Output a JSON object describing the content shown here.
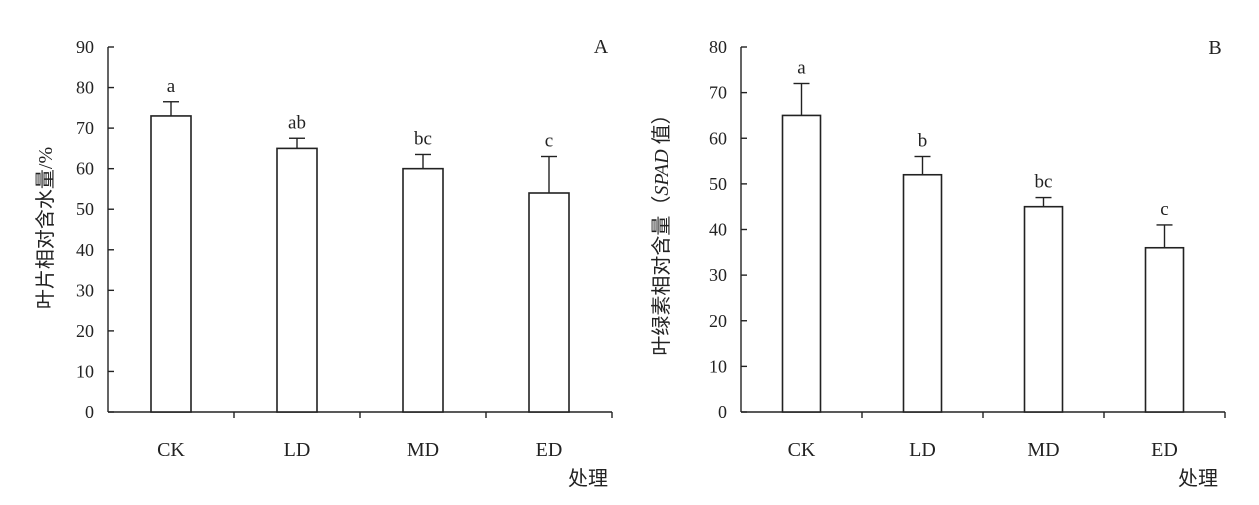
{
  "chart_data": [
    {
      "type": "bar",
      "panel_label": "A",
      "categories": [
        "CK",
        "LD",
        "MD",
        "ED"
      ],
      "values": [
        73,
        65,
        60,
        54
      ],
      "errors": [
        3.5,
        2.5,
        3.5,
        9
      ],
      "significance": [
        "a",
        "ab",
        "bc",
        "c"
      ],
      "ylabel": "叶片相对含水量/%",
      "xlabel": "处理",
      "ylim": [
        0,
        90
      ],
      "yticks": [
        0,
        10,
        20,
        30,
        40,
        50,
        60,
        70,
        80,
        90
      ]
    },
    {
      "type": "bar",
      "panel_label": "B",
      "categories": [
        "CK",
        "LD",
        "MD",
        "ED"
      ],
      "values": [
        65,
        52,
        45,
        36
      ],
      "errors": [
        7,
        4,
        2,
        5
      ],
      "significance": [
        "a",
        "b",
        "bc",
        "c"
      ],
      "ylabel_prefix": "叶绿素相对含量（",
      "ylabel_italic": "SPAD",
      "ylabel_suffix": " 值）",
      "xlabel": "处理",
      "ylim": [
        0,
        80
      ],
      "yticks": [
        0,
        10,
        20,
        30,
        40,
        50,
        60,
        70,
        80
      ]
    }
  ]
}
